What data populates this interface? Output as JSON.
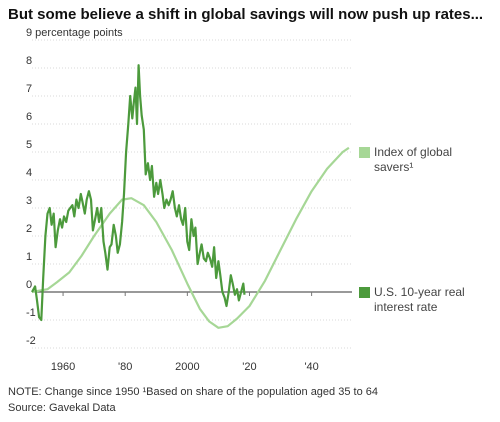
{
  "title": "But some believe a shift in global savings will now push up rates...",
  "footer": {
    "note": "NOTE: Change since 1950 ¹Based on share of the population aged 35 to 64",
    "source": "Source: Gavekal Data"
  },
  "colors": {
    "savers": "#a6d796",
    "rate": "#4c9a3c",
    "grid": "#cccccc",
    "zero_line": "#333333",
    "text": "#333333"
  },
  "chart_data": {
    "type": "line",
    "title": "But some believe a shift in global savings will now push up rates...",
    "ylabel": "9 percentage points",
    "xlim": [
      1950,
      2053
    ],
    "ylim": [
      -2,
      9
    ],
    "yticks": [
      "9 percentage points",
      "8",
      "7",
      "6",
      "5",
      "4",
      "3",
      "2",
      "1",
      "0",
      "-1",
      "-2"
    ],
    "xticks": [
      {
        "value": 1960,
        "label": "1960"
      },
      {
        "value": 1980,
        "label": "'80"
      },
      {
        "value": 2000,
        "label": "2000"
      },
      {
        "value": 2020,
        "label": "'20"
      },
      {
        "value": 2040,
        "label": "'40"
      }
    ],
    "grid": true,
    "series": [
      {
        "name": "Index of global savers¹",
        "legend": [
          "Index of global",
          "savers¹"
        ],
        "points": [
          [
            1950,
            0
          ],
          [
            1955,
            0.1
          ],
          [
            1958,
            0.35
          ],
          [
            1962,
            0.7
          ],
          [
            1966,
            1.3
          ],
          [
            1970,
            2.0
          ],
          [
            1975,
            2.8
          ],
          [
            1979,
            3.3
          ],
          [
            1982,
            3.35
          ],
          [
            1986,
            3.1
          ],
          [
            1990,
            2.5
          ],
          [
            1995,
            1.5
          ],
          [
            2000,
            0.3
          ],
          [
            2004,
            -0.6
          ],
          [
            2007,
            -1.05
          ],
          [
            2010,
            -1.28
          ],
          [
            2013,
            -1.22
          ],
          [
            2016,
            -0.95
          ],
          [
            2020,
            -0.5
          ],
          [
            2025,
            0.4
          ],
          [
            2030,
            1.5
          ],
          [
            2035,
            2.6
          ],
          [
            2040,
            3.6
          ],
          [
            2045,
            4.4
          ],
          [
            2050,
            5.0
          ],
          [
            2052,
            5.15
          ]
        ]
      },
      {
        "name": "U.S. 10-year real interest rate",
        "legend": [
          "U.S. 10-year real",
          "interest rate"
        ],
        "points": [
          [
            1950,
            0
          ],
          [
            1951,
            0.2
          ],
          [
            1951.6,
            -0.3
          ],
          [
            1952.3,
            -0.9
          ],
          [
            1953,
            -1.0
          ],
          [
            1953.6,
            0.5
          ],
          [
            1954.3,
            2.0
          ],
          [
            1955,
            2.8
          ],
          [
            1955.7,
            3.0
          ],
          [
            1956.3,
            2.4
          ],
          [
            1957,
            2.8
          ],
          [
            1957.6,
            1.6
          ],
          [
            1958.3,
            2.2
          ],
          [
            1959,
            2.6
          ],
          [
            1959.7,
            2.3
          ],
          [
            1960.3,
            2.7
          ],
          [
            1961,
            2.5
          ],
          [
            1961.7,
            2.9
          ],
          [
            1962.3,
            3.0
          ],
          [
            1963,
            3.1
          ],
          [
            1963.6,
            2.7
          ],
          [
            1964.3,
            3.3
          ],
          [
            1965,
            3.0
          ],
          [
            1965.7,
            3.5
          ],
          [
            1966.3,
            3.2
          ],
          [
            1967,
            2.8
          ],
          [
            1967.6,
            3.3
          ],
          [
            1968.3,
            3.6
          ],
          [
            1969,
            3.3
          ],
          [
            1969.6,
            2.2
          ],
          [
            1970.3,
            2.6
          ],
          [
            1971,
            3.0
          ],
          [
            1971.6,
            2.5
          ],
          [
            1972.3,
            3.0
          ],
          [
            1973,
            1.8
          ],
          [
            1973.6,
            1.4
          ],
          [
            1974.3,
            0.8
          ],
          [
            1975,
            1.6
          ],
          [
            1975.6,
            1.7
          ],
          [
            1976.3,
            2.4
          ],
          [
            1977,
            2.0
          ],
          [
            1977.6,
            1.4
          ],
          [
            1978.3,
            1.7
          ],
          [
            1979,
            2.5
          ],
          [
            1979.6,
            3.5
          ],
          [
            1980.3,
            5.0
          ],
          [
            1981,
            6.0
          ],
          [
            1981.6,
            7.0
          ],
          [
            1982.3,
            6.2
          ],
          [
            1982.8,
            6.8
          ],
          [
            1983.3,
            7.3
          ],
          [
            1983.8,
            6.0
          ],
          [
            1984.3,
            8.1
          ],
          [
            1984.8,
            7.0
          ],
          [
            1985.3,
            6.3
          ],
          [
            1986,
            5.8
          ],
          [
            1986.6,
            4.2
          ],
          [
            1987.3,
            4.6
          ],
          [
            1988,
            4.0
          ],
          [
            1988.6,
            4.5
          ],
          [
            1989.3,
            3.4
          ],
          [
            1990,
            3.9
          ],
          [
            1990.6,
            3.5
          ],
          [
            1991.3,
            4.0
          ],
          [
            1992,
            3.5
          ],
          [
            1992.6,
            3.0
          ],
          [
            1993.3,
            3.3
          ],
          [
            1994,
            3.1
          ],
          [
            1994.6,
            3.3
          ],
          [
            1995.3,
            3.6
          ],
          [
            1996,
            3.0
          ],
          [
            1996.6,
            2.7
          ],
          [
            1997.3,
            3.1
          ],
          [
            1998,
            2.6
          ],
          [
            1998.6,
            2.4
          ],
          [
            1999.3,
            3.0
          ],
          [
            2000,
            1.8
          ],
          [
            2000.6,
            1.5
          ],
          [
            2001.3,
            2.6
          ],
          [
            2002,
            2.0
          ],
          [
            2002.6,
            2.3
          ],
          [
            2003.3,
            1.0
          ],
          [
            2004,
            1.4
          ],
          [
            2004.6,
            1.7
          ],
          [
            2005.3,
            1.2
          ],
          [
            2006,
            1.1
          ],
          [
            2006.6,
            1.4
          ],
          [
            2007.3,
            1.2
          ],
          [
            2008,
            0.9
          ],
          [
            2008.6,
            1.6
          ],
          [
            2009.3,
            0.5
          ],
          [
            2010,
            1.1
          ],
          [
            2010.6,
            0.6
          ],
          [
            2011.3,
            0.0
          ],
          [
            2012,
            -0.2
          ],
          [
            2012.6,
            -0.5
          ],
          [
            2013.3,
            0.0
          ],
          [
            2014,
            0.6
          ],
          [
            2014.6,
            0.3
          ],
          [
            2015.3,
            -0.1
          ],
          [
            2016,
            0.1
          ],
          [
            2016.6,
            -0.3
          ],
          [
            2017.3,
            0.0
          ],
          [
            2018,
            0.3
          ],
          [
            2018.4,
            -0.1
          ]
        ]
      }
    ]
  }
}
